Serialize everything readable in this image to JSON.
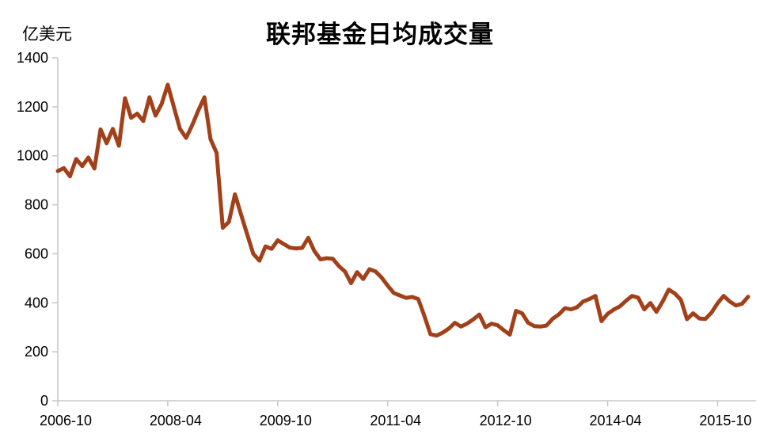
{
  "page": {
    "background_color": "#ffffff"
  },
  "chart": {
    "title": "联邦基金日均成交量",
    "y_axis_unit_label": "亿美元",
    "line_color": "#A2401A",
    "axis_color": "#C9C9C9",
    "text_color": "#000000"
  },
  "chart_data": {
    "type": "line",
    "title": "联邦基金日均成交量",
    "ylabel": "亿美元",
    "xlabel": "",
    "ylim": [
      0,
      1400
    ],
    "y_ticks": [
      0,
      200,
      400,
      600,
      800,
      1000,
      1200,
      1400
    ],
    "x_tick_labels": [
      "2006-10",
      "2008-04",
      "2009-10",
      "2011-04",
      "2012-10",
      "2014-04",
      "2015-10"
    ],
    "x_tick_indices": [
      0,
      18,
      36,
      54,
      72,
      90,
      108
    ],
    "x_start": "2006-10",
    "x_frequency": "monthly",
    "grid": false,
    "legend_position": "none",
    "series": [
      {
        "name": "联邦基金日均成交量",
        "values": [
          938,
          950,
          916,
          987,
          958,
          993,
          948,
          1108,
          1051,
          1110,
          1041,
          1235,
          1155,
          1172,
          1142,
          1239,
          1164,
          1212,
          1290,
          1200,
          1110,
          1073,
          1125,
          1185,
          1239,
          1068,
          1012,
          706,
          730,
          843,
          760,
          680,
          600,
          572,
          630,
          620,
          655,
          640,
          625,
          622,
          624,
          665,
          611,
          577,
          582,
          580,
          550,
          528,
          480,
          525,
          497,
          537,
          528,
          503,
          470,
          440,
          430,
          420,
          424,
          415,
          347,
          272,
          266,
          278,
          295,
          318,
          303,
          315,
          332,
          352,
          300,
          315,
          308,
          288,
          270,
          367,
          357,
          318,
          305,
          303,
          307,
          335,
          352,
          378,
          373,
          382,
          405,
          415,
          428,
          325,
          355,
          372,
          385,
          408,
          428,
          421,
          373,
          399,
          363,
          405,
          454,
          438,
          412,
          333,
          357,
          336,
          334,
          360,
          398,
          428,
          405,
          389,
          396,
          425
        ]
      }
    ]
  }
}
